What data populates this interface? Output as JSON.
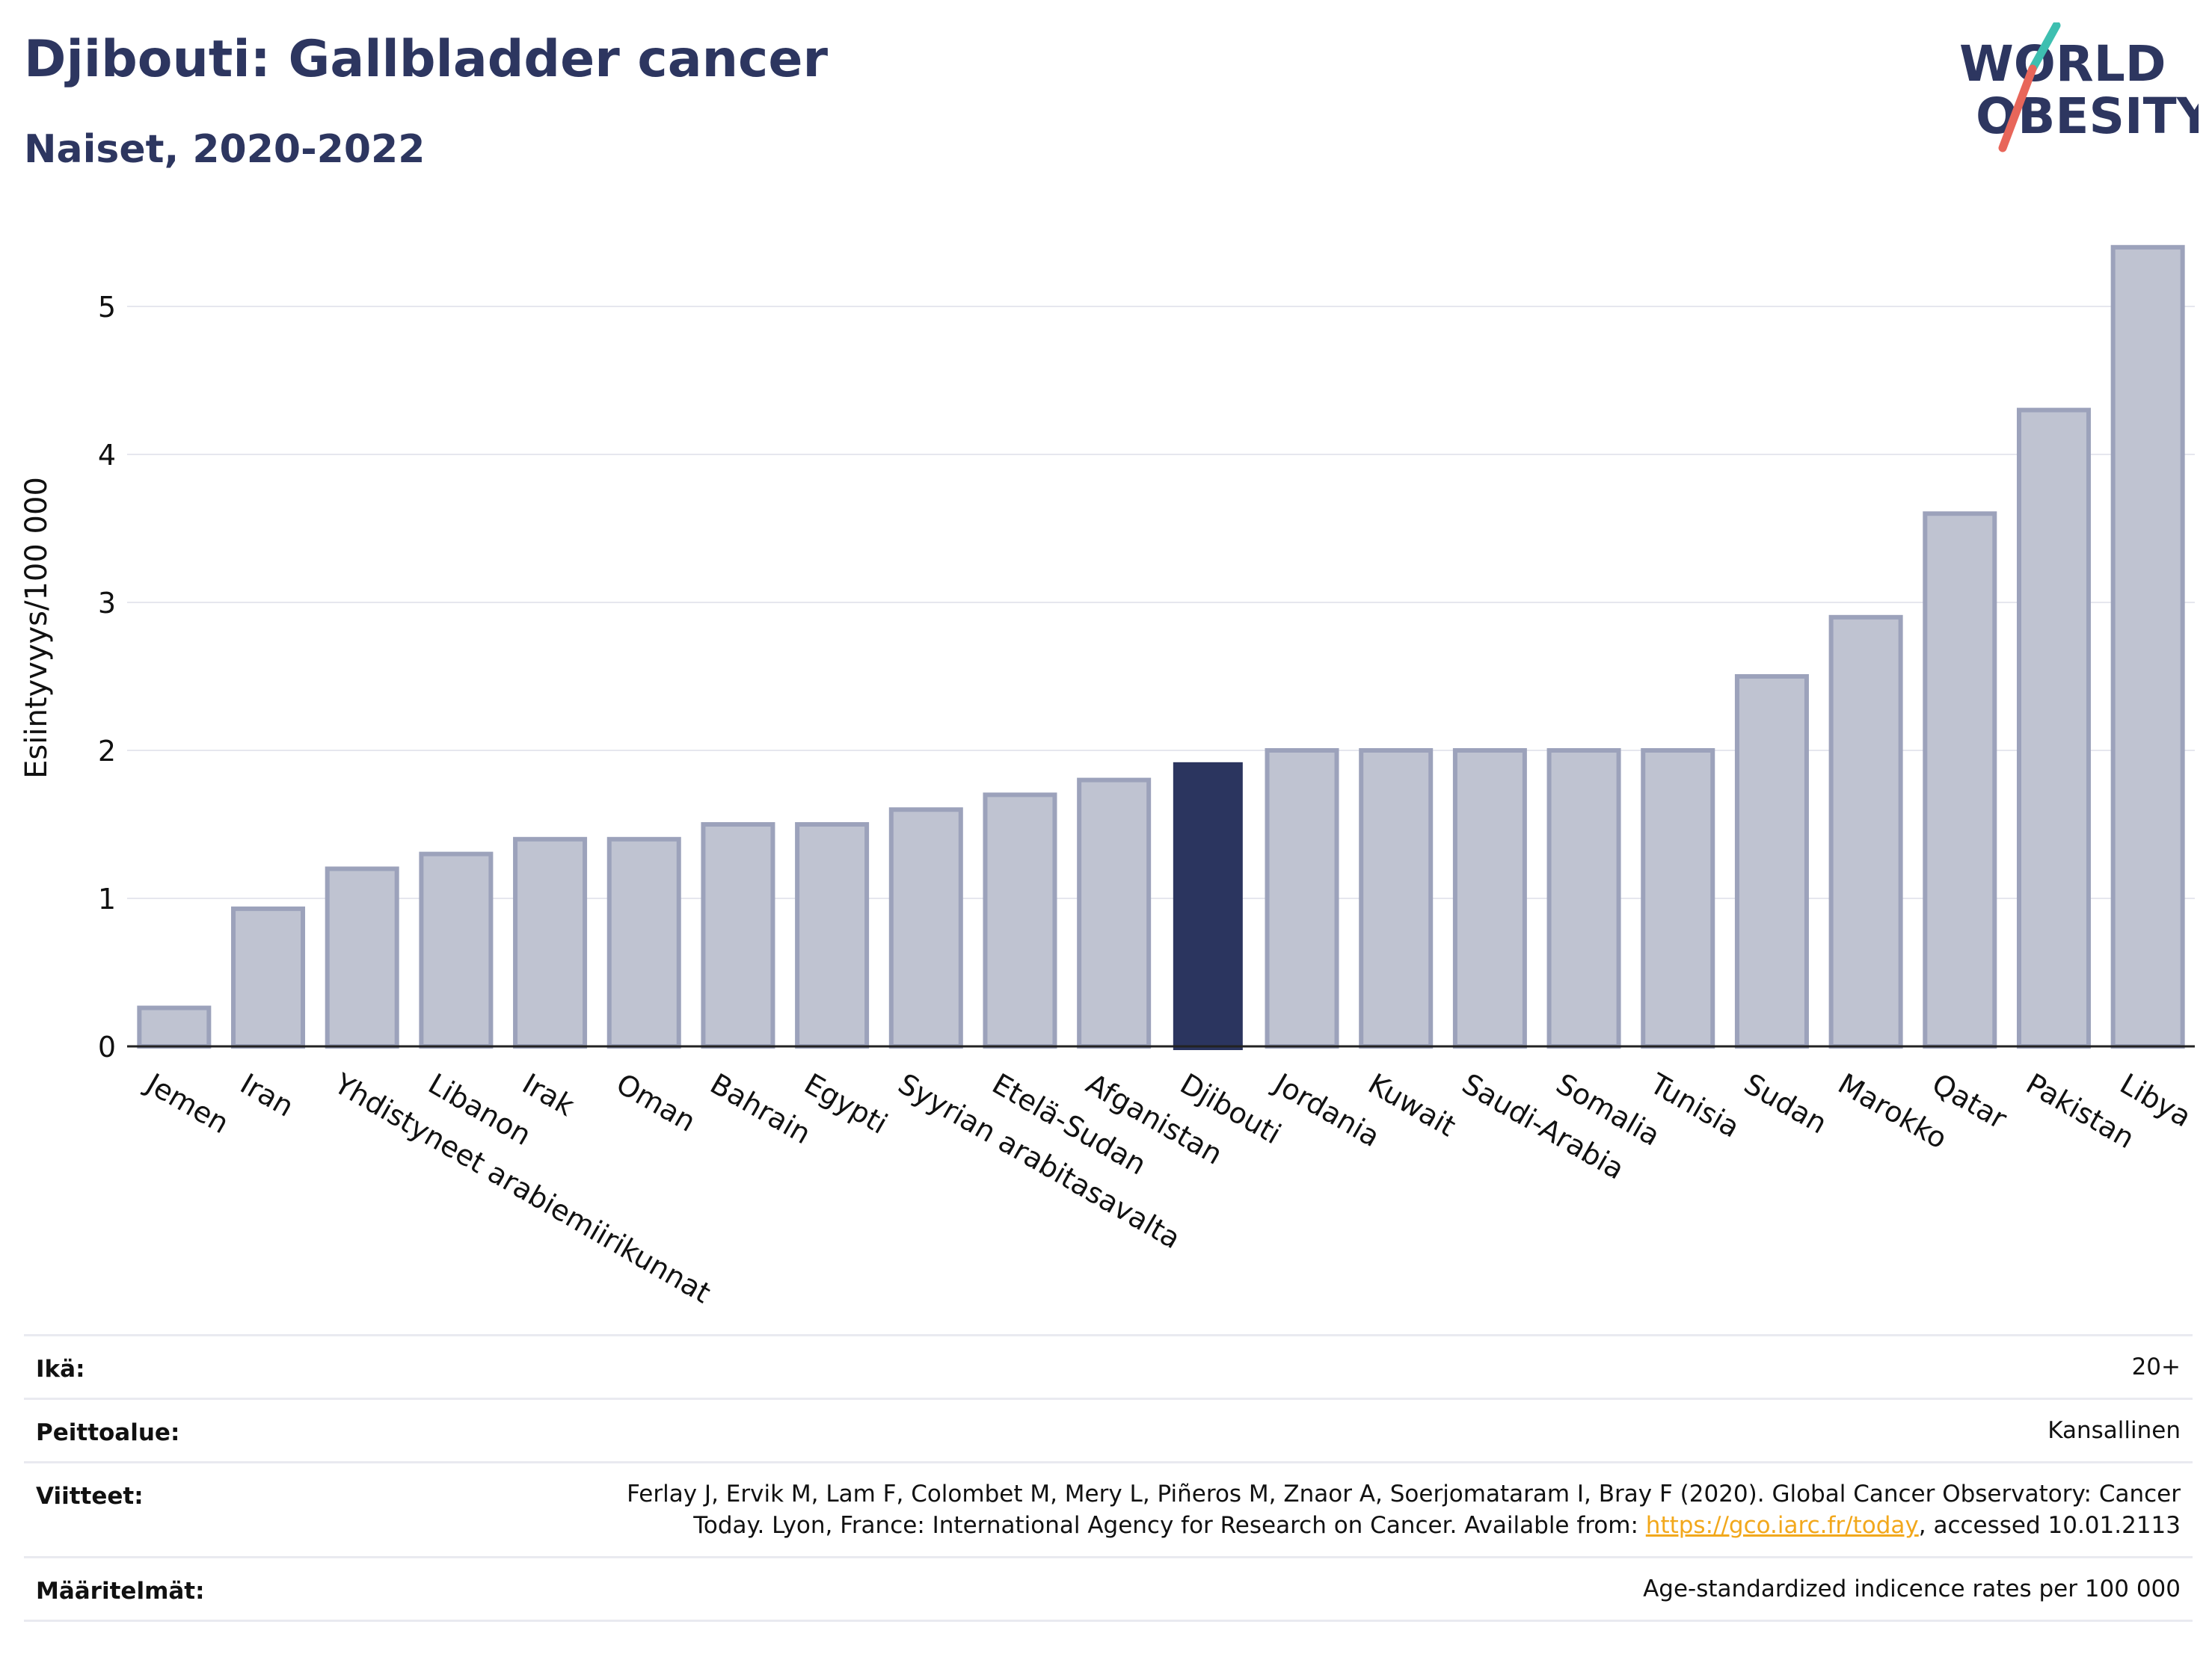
{
  "header": {
    "title": "Djibouti: Gallbladder cancer",
    "subtitle": "Naiset, 2020-2022"
  },
  "logo": {
    "line1": "WORLD",
    "line2": "OBESITY",
    "colors": {
      "text": "#2d3660",
      "slash_top": "#3ebfb0",
      "slash_bottom": "#e8665a"
    }
  },
  "chart_data": {
    "type": "bar",
    "ylabel": "Esiintyvyys/100 000",
    "xlabel": "",
    "ylim": [
      0,
      5.5
    ],
    "yticks": [
      0,
      1,
      2,
      3,
      4,
      5
    ],
    "grid": true,
    "highlight": "Djibouti",
    "colors": {
      "bar": "#bfc3d1",
      "bar_border": "#9ca2bb",
      "highlight": "#2b355f",
      "grid": "#e6e7ee"
    },
    "categories": [
      "Jemen",
      "Iran",
      "Yhdistyneet arabiemiirikunnat",
      "Libanon",
      "Irak",
      "Oman",
      "Bahrain",
      "Egypti",
      "Syyrian arabitasavalta",
      "Etelä-Sudan",
      "Afganistan",
      "Djibouti",
      "Jordania",
      "Kuwait",
      "Saudi-Arabia",
      "Somalia",
      "Tunisia",
      "Sudan",
      "Marokko",
      "Qatar",
      "Pakistan",
      "Libya"
    ],
    "values": [
      0.26,
      0.93,
      1.2,
      1.3,
      1.4,
      1.4,
      1.5,
      1.5,
      1.6,
      1.7,
      1.8,
      1.92,
      2.0,
      2.0,
      2.0,
      2.0,
      2.0,
      2.5,
      2.9,
      3.6,
      4.3,
      5.4
    ]
  },
  "meta": {
    "age_label": "Ikä:",
    "age_value": "20+",
    "coverage_label": "Peittoalue:",
    "coverage_value": "Kansallinen",
    "references_label": "Viitteet:",
    "references_text": "Ferlay J, Ervik M, Lam F, Colombet M, Mery L, Piñeros M, Znaor A, Soerjomataram I, Bray F (2020). Global Cancer Observatory: Cancer Today. Lyon, France: International Agency for Research on Cancer. Available from: ",
    "references_link": "https://gco.iarc.fr/today",
    "references_suffix": ", accessed 10.01.2113",
    "definitions_label": "Määritelmät:",
    "definitions_value": "Age-standardized indicence rates per 100 000"
  }
}
